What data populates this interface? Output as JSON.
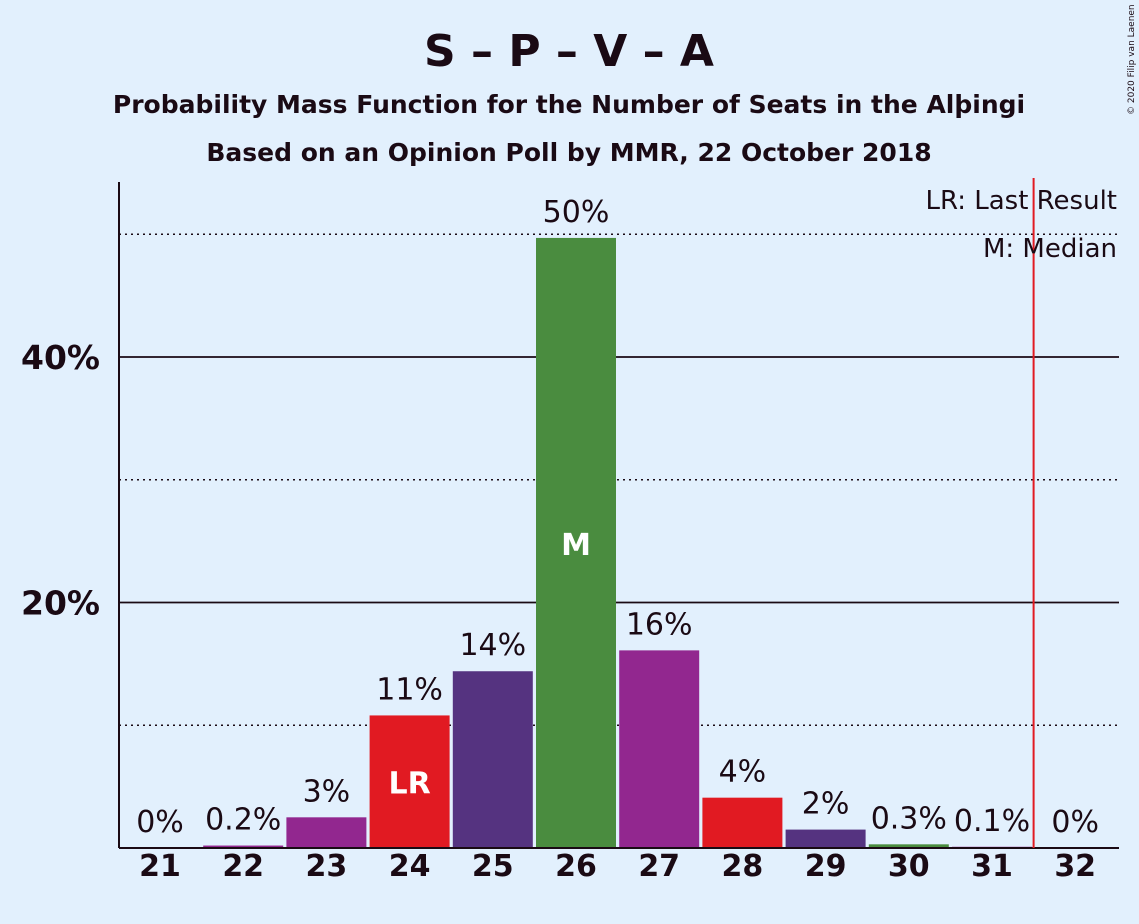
{
  "chart_data": {
    "type": "bar",
    "title": "S – P – V – A",
    "subtitle": "Probability Mass Function for the Number of Seats in the Alþingi",
    "subtitle2": "Based on an Opinion Poll by MMR, 22 October 2018",
    "categories": [
      "21",
      "22",
      "23",
      "24",
      "25",
      "26",
      "27",
      "28",
      "29",
      "30",
      "31",
      "32"
    ],
    "values": [
      0,
      0.2,
      2.5,
      10.8,
      14.4,
      49.7,
      16.1,
      4.1,
      1.5,
      0.3,
      0.1,
      0
    ],
    "data_labels": [
      "0%",
      "0.2%",
      "3%",
      "11%",
      "14%",
      "50%",
      "16%",
      "4%",
      "2%",
      "0.3%",
      "0.1%",
      "0%"
    ],
    "bar_colors": [
      "#92278f",
      "#92278f",
      "#92278f",
      "#e11a22",
      "#553380",
      "#4a8c3f",
      "#92278f",
      "#e11a22",
      "#553380",
      "#4a8c3f",
      "#92278f",
      "#92278f"
    ],
    "bar_marks": {
      "3": "LR",
      "5": "M"
    },
    "yticks": [
      {
        "value": 20,
        "label": "20%"
      },
      {
        "value": 40,
        "label": "40%"
      }
    ],
    "dotted_gridlines": [
      10,
      30,
      50
    ],
    "ylim": [
      0,
      54
    ],
    "last_result_line": 31.5,
    "last_result_color": "#e11a22",
    "legend": [
      "LR: Last Result",
      "M: Median"
    ],
    "legend_position": "top-right",
    "copyright": "© 2020 Filip van Laenen"
  }
}
